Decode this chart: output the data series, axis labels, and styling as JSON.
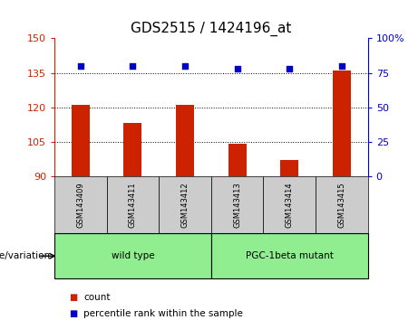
{
  "title": "GDS2515 / 1424196_at",
  "samples": [
    "GSM143409",
    "GSM143411",
    "GSM143412",
    "GSM143413",
    "GSM143414",
    "GSM143415"
  ],
  "bar_values": [
    121,
    113,
    121,
    104,
    97,
    136
  ],
  "percentile_values": [
    80,
    80,
    80,
    78,
    78,
    80
  ],
  "bar_color": "#cc2200",
  "percentile_color": "#0000cc",
  "left_ylim": [
    90,
    150
  ],
  "left_yticks": [
    90,
    105,
    120,
    135,
    150
  ],
  "right_ylim": [
    0,
    100
  ],
  "right_yticks": [
    0,
    25,
    50,
    75,
    100
  ],
  "right_yticklabels": [
    "0",
    "25",
    "50",
    "75",
    "100%"
  ],
  "hlines": [
    105,
    120,
    135
  ],
  "groups": [
    {
      "label": "wild type",
      "start": 0,
      "end": 3
    },
    {
      "label": "PGC-1beta mutant",
      "start": 3,
      "end": 6
    }
  ],
  "group_color": "#90ee90",
  "sample_bg_color": "#cccccc",
  "legend_items": [
    {
      "label": "count",
      "color": "#cc2200"
    },
    {
      "label": "percentile rank within the sample",
      "color": "#0000cc"
    }
  ],
  "genotype_label": "genotype/variation",
  "title_fontsize": 11,
  "tick_fontsize": 8,
  "axis_tick_color_left": "#cc2200",
  "axis_tick_color_right": "#0000cc",
  "bar_width": 0.35
}
